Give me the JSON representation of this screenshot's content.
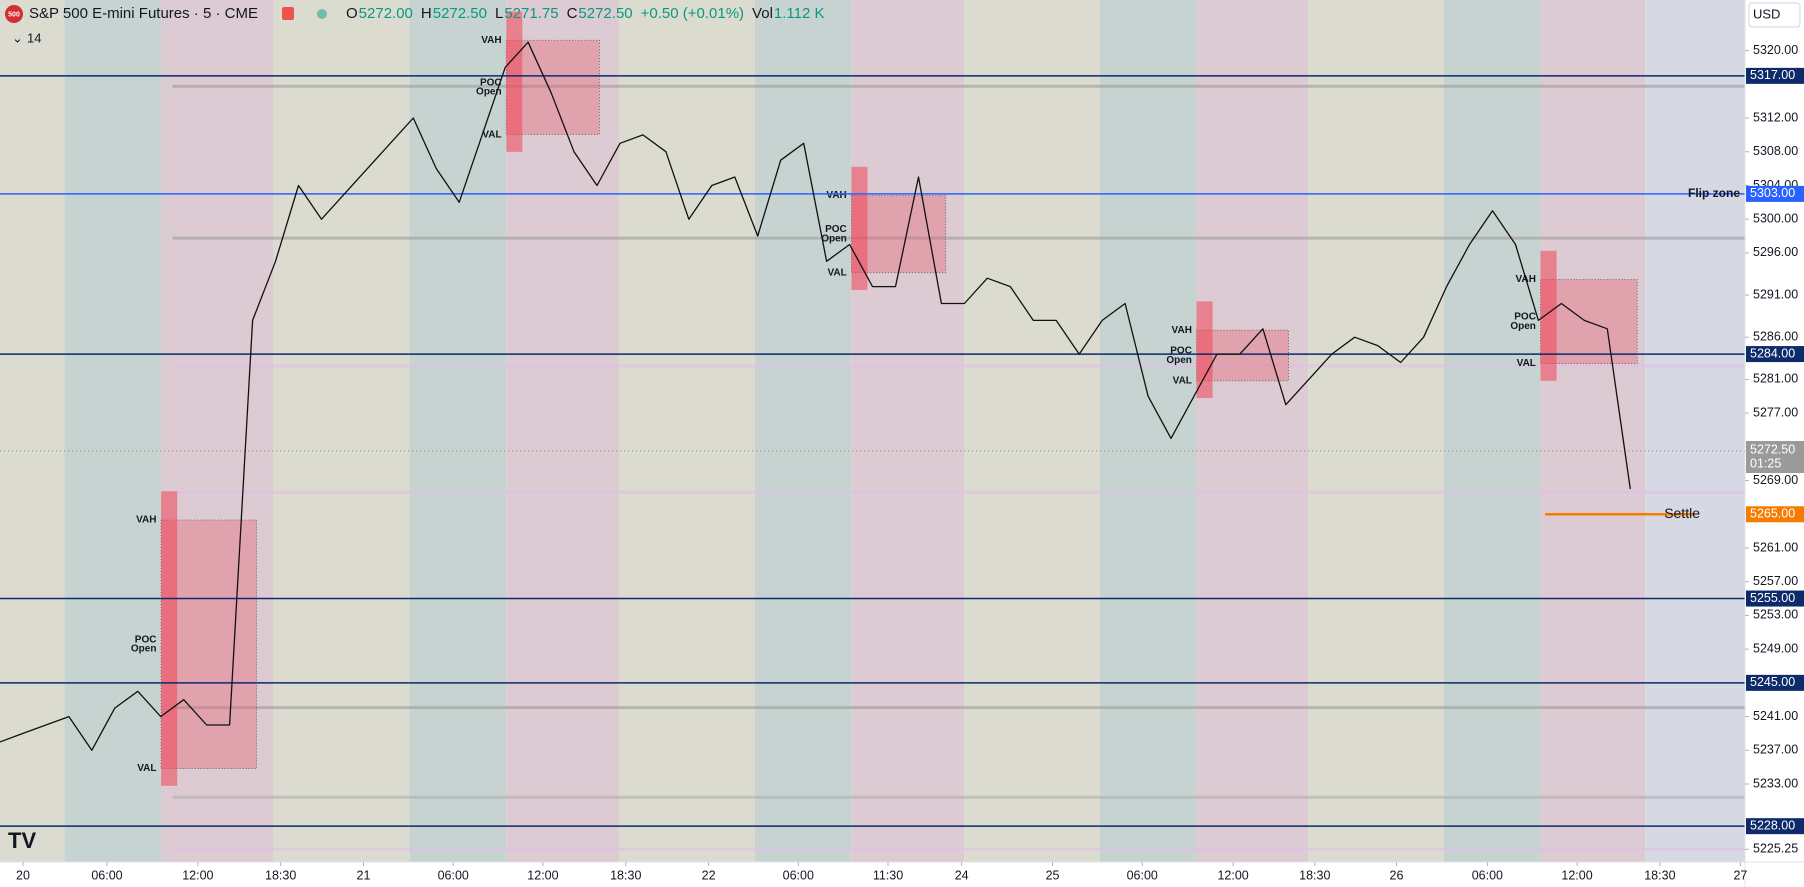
{
  "chart_data": {
    "type": "line",
    "header": {
      "symbol_badge": "500",
      "title": "S&P 500 E-mini Futures · 5 · CME",
      "ohlc": [
        {
          "key": "O",
          "value": "5272.00"
        },
        {
          "key": "H",
          "value": "5272.50"
        },
        {
          "key": "L",
          "value": "5271.75"
        },
        {
          "key": "C",
          "value": "5272.50"
        },
        {
          "key": "",
          "value": "+0.50 (+0.01%)"
        },
        {
          "key": "Vol",
          "value": "1.112 K"
        }
      ],
      "indicator_count": "14",
      "currency": "USD"
    },
    "color": "#111111",
    "values": [
      5238,
      5239,
      5240,
      5241,
      5237,
      5242,
      5244,
      5241,
      5243,
      5240,
      5240,
      5288,
      5295,
      5304,
      5300,
      5303,
      5306,
      5309,
      5312,
      5306,
      5302,
      5310,
      5318,
      5321,
      5315,
      5308,
      5304,
      5309,
      5310,
      5308,
      5300,
      5304,
      5305,
      5298,
      5307,
      5309,
      5295,
      5297,
      5292,
      5292,
      5305,
      5290,
      5290,
      5293,
      5292,
      5288,
      5288,
      5284,
      5288,
      5290,
      5279,
      5274,
      5279,
      5284,
      5284,
      5287,
      5278,
      5281,
      5284,
      5286,
      5285,
      5283,
      5286,
      5292,
      5297,
      5301,
      5297,
      5288,
      5290,
      5288,
      5287,
      5268
    ],
    "xlim": [
      0,
      75.85
    ],
    "xticks": [
      {
        "value": 1.0,
        "label": "20"
      },
      {
        "value": 4.65,
        "label": "06:00"
      },
      {
        "value": 8.6,
        "label": "12:00"
      },
      {
        "value": 12.2,
        "label": "18:30"
      },
      {
        "value": 15.8,
        "label": "21"
      },
      {
        "value": 19.7,
        "label": "06:00"
      },
      {
        "value": 23.6,
        "label": "12:00"
      },
      {
        "value": 27.2,
        "label": "18:30"
      },
      {
        "value": 30.8,
        "label": "22"
      },
      {
        "value": 34.7,
        "label": "06:00"
      },
      {
        "value": 38.6,
        "label": "11:30"
      },
      {
        "value": 41.8,
        "label": "24"
      },
      {
        "value": 45.75,
        "label": "25"
      },
      {
        "value": 49.65,
        "label": "06:00"
      },
      {
        "value": 53.6,
        "label": "12:00"
      },
      {
        "value": 57.15,
        "label": "18:30"
      },
      {
        "value": 60.7,
        "label": "26"
      },
      {
        "value": 64.65,
        "label": "06:00"
      },
      {
        "value": 68.55,
        "label": "12:00"
      },
      {
        "value": 72.15,
        "label": "18:30"
      },
      {
        "value": 75.65,
        "label": "27"
      }
    ],
    "ylim": [
      5223.75,
      5326.0
    ],
    "yticks": [
      {
        "value": 5320,
        "label": "5320.00"
      },
      {
        "value": 5312,
        "label": "5312.00"
      },
      {
        "value": 5308,
        "label": "5308.00"
      },
      {
        "value": 5304,
        "label": "5304.00"
      },
      {
        "value": 5300,
        "label": "5300.00"
      },
      {
        "value": 5296,
        "label": "5296.00"
      },
      {
        "value": 5291,
        "label": "5291.00"
      },
      {
        "value": 5286,
        "label": "5286.00"
      },
      {
        "value": 5281,
        "label": "5281.00"
      },
      {
        "value": 5277,
        "label": "5277.00"
      },
      {
        "value": 5269,
        "label": "5269.00"
      },
      {
        "value": 5261,
        "label": "5261.00"
      },
      {
        "value": 5257,
        "label": "5257.00"
      },
      {
        "value": 5253,
        "label": "5253.00"
      },
      {
        "value": 5249,
        "label": "5249.00"
      },
      {
        "value": 5241,
        "label": "5241.00"
      },
      {
        "value": 5237,
        "label": "5237.00"
      },
      {
        "value": 5233,
        "label": "5233.00"
      },
      {
        "value": 5225.25,
        "label": "5225.25"
      }
    ],
    "levels": [
      {
        "value": 5317,
        "label": "5317.00",
        "color": "#0d2a6b"
      },
      {
        "value": 5303,
        "label": "5303.00",
        "color": "#2962ff",
        "note": "Flip zone"
      },
      {
        "value": 5284,
        "label": "5284.00",
        "color": "#0d2a6b"
      },
      {
        "value": 5265,
        "label": "5265.00",
        "color": "#f57c00",
        "note": "Settle"
      },
      {
        "value": 5255,
        "label": "5255.00",
        "color": "#0d2a6b"
      },
      {
        "value": 5245,
        "label": "5245.00",
        "color": "#0d2a6b"
      },
      {
        "value": 5228,
        "label": "5228.00",
        "color": "#0d2a6b"
      }
    ],
    "last_price": {
      "value": 5272.5,
      "label": "5272.50",
      "countdown": "01:25"
    },
    "profile_labels": [
      "VAH",
      "POC",
      "Open",
      "VAL"
    ]
  }
}
